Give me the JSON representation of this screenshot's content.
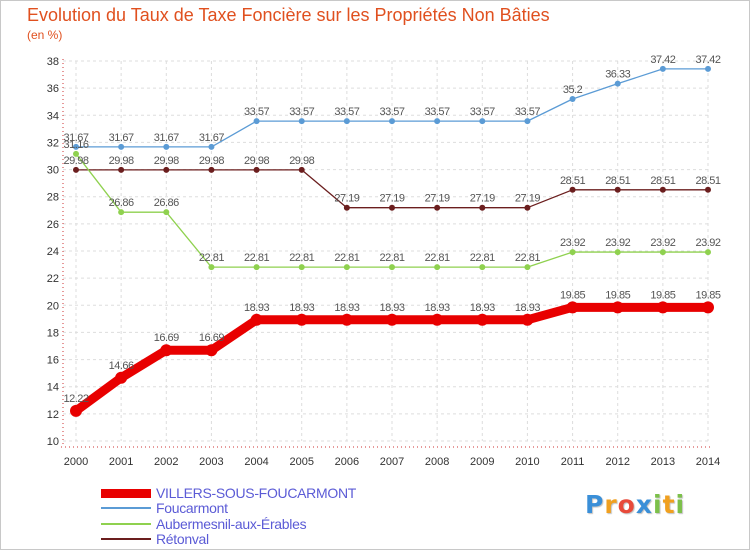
{
  "chart_data": {
    "type": "line",
    "title": "Evolution du Taux de Taxe Foncière sur les Propriétés Non Bâties",
    "ylabel": "(en %)",
    "xlabel": "",
    "categories": [
      "2000",
      "2001",
      "2002",
      "2003",
      "2004",
      "2005",
      "2006",
      "2007",
      "2008",
      "2009",
      "2010",
      "2011",
      "2012",
      "2013",
      "2014"
    ],
    "ylim": [
      10,
      38
    ],
    "yticks": [
      "10",
      "12",
      "14",
      "16",
      "18",
      "20",
      "22",
      "24",
      "26",
      "28",
      "30",
      "32",
      "34",
      "36",
      "38"
    ],
    "grid": true,
    "series": [
      {
        "name": "VILLERS-SOUS-FOUCARMONT",
        "color": "#e80000",
        "values": [
          12.22,
          14.66,
          16.69,
          16.69,
          18.93,
          18.93,
          18.93,
          18.93,
          18.93,
          18.93,
          18.93,
          19.85,
          19.85,
          19.85,
          19.85
        ],
        "labels": [
          "12.22",
          "14.66",
          "16.69",
          "16.69",
          "18.93",
          "18.93",
          "18.93",
          "18.93",
          "18.93",
          "18.93",
          "18.93",
          "19.85",
          "19.85",
          "19.85",
          "19.85"
        ]
      },
      {
        "name": "Foucarmont",
        "color": "#5b9bd5",
        "values": [
          31.67,
          31.67,
          31.67,
          31.67,
          33.57,
          33.57,
          33.57,
          33.57,
          33.57,
          33.57,
          33.57,
          35.2,
          36.33,
          37.42,
          37.42
        ],
        "labels": [
          "31.67",
          "31.67",
          "31.67",
          "31.67",
          "33.57",
          "33.57",
          "33.57",
          "33.57",
          "33.57",
          "33.57",
          "33.57",
          "35.2",
          "36.33",
          "37.42",
          "37.42"
        ]
      },
      {
        "name": "Aubermesnil-aux-Érables",
        "color": "#8fd14f",
        "values": [
          31.16,
          26.86,
          26.86,
          22.81,
          22.81,
          22.81,
          22.81,
          22.81,
          22.81,
          22.81,
          22.81,
          23.92,
          23.92,
          23.92,
          23.92
        ],
        "labels": [
          "31.16",
          "26.86",
          "26.86",
          "22.81",
          "22.81",
          "22.81",
          "22.81",
          "22.81",
          "22.81",
          "22.81",
          "22.81",
          "23.92",
          "23.92",
          "23.92",
          "23.92"
        ]
      },
      {
        "name": "Rétonval",
        "color": "#6b1e1e",
        "values": [
          29.98,
          29.98,
          29.98,
          29.98,
          29.98,
          29.98,
          27.19,
          27.19,
          27.19,
          27.19,
          27.19,
          28.51,
          28.51,
          28.51,
          28.51
        ],
        "labels": [
          "29.98",
          "29.98",
          "29.98",
          "29.98",
          "29.98",
          "29.98",
          "27.19",
          "27.19",
          "27.19",
          "27.19",
          "27.19",
          "28.51",
          "28.51",
          "28.51",
          "28.51"
        ]
      }
    ],
    "legend_position": "bottom-left"
  },
  "logo": {
    "text": "Proxiti",
    "letters": [
      {
        "ch": "P",
        "color": "#3a8fd8"
      },
      {
        "ch": "r",
        "color": "#f0a020"
      },
      {
        "ch": "o",
        "color": "#e84a3a"
      },
      {
        "ch": "x",
        "color": "#3a8fd8"
      },
      {
        "ch": "i",
        "color": "#7cc04a"
      },
      {
        "ch": "t",
        "color": "#f0a020"
      },
      {
        "ch": "i",
        "color": "#7cc04a"
      }
    ]
  },
  "colors": {
    "title": "#e0501f",
    "legend_text": "#5b5bd6",
    "grid": "#dddddd",
    "axis": "#cc3333"
  }
}
